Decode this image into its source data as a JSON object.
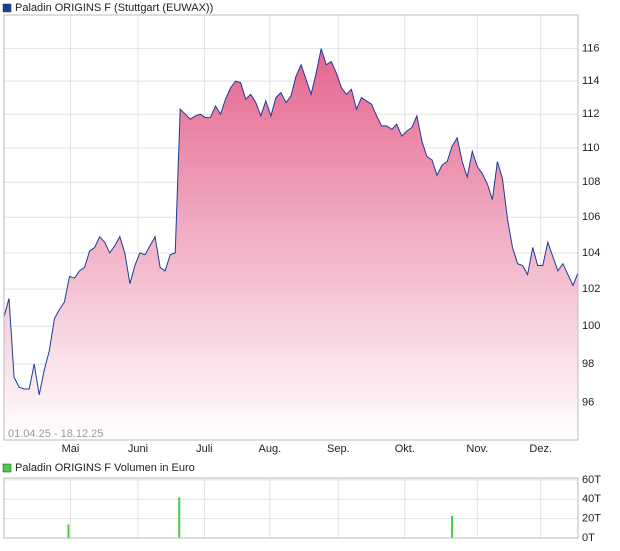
{
  "chart_data": [
    {
      "type": "area",
      "title": "Paladin ORIGINS F (Stuttgart (EUWAX))",
      "annotation": "01.04.25 - 18.12.25",
      "color": "#1a3c9a",
      "fill_color": "#e5658f",
      "log_scale": true,
      "grid": true,
      "values": [
        100.5,
        101.5,
        97.3,
        96.8,
        96.7,
        96.7,
        98,
        96.4,
        97.7,
        98.7,
        100.4,
        100.9,
        101.3,
        102.7,
        102.6,
        103,
        103.2,
        104.1,
        104.3,
        104.9,
        104.6,
        104,
        104.4,
        104.9,
        104,
        102.3,
        103.3,
        104,
        103.9,
        104.4,
        104.9,
        103.2,
        103,
        103.9,
        104,
        112.3,
        112,
        111.7,
        111.9,
        112,
        111.8,
        111.8,
        112.5,
        112,
        112.9,
        113.6,
        114,
        113.9,
        112.9,
        113.2,
        112.7,
        111.9,
        112.8,
        111.9,
        113,
        113.3,
        112.7,
        113.1,
        114.3,
        115,
        114.1,
        113.2,
        114.5,
        116,
        115,
        115.2,
        114.5,
        113.6,
        113.2,
        113.5,
        112.3,
        113,
        112.8,
        112.6,
        111.9,
        111.3,
        111.3,
        111.1,
        111.4,
        110.7,
        111,
        111.2,
        111.9,
        110.4,
        109.5,
        109.3,
        108.4,
        109,
        109.2,
        110.1,
        110.6,
        109.2,
        108.3,
        109.8,
        108.9,
        108.5,
        107.9,
        107,
        109.2,
        108.2,
        105.9,
        104.3,
        103.4,
        103.3,
        102.8,
        104.3,
        103.3,
        103.3,
        104.6,
        103.8,
        103,
        103.4,
        102.8,
        102.2,
        102.9
      ],
      "xlim": [
        0,
        114
      ],
      "xticks": [
        {
          "value": 13.2,
          "label": "Mai"
        },
        {
          "value": 26.6,
          "label": "Juni"
        },
        {
          "value": 39.8,
          "label": "Juli"
        },
        {
          "value": 52.8,
          "label": "Aug."
        },
        {
          "value": 66.4,
          "label": "Sep."
        },
        {
          "value": 79.6,
          "label": "Okt."
        },
        {
          "value": 94,
          "label": "Nov."
        },
        {
          "value": 106.6,
          "label": "Dez."
        }
      ],
      "ylim": [
        94.1,
        118.1
      ],
      "yticks": [
        96,
        98,
        100,
        102,
        104,
        106,
        108,
        110,
        112,
        114,
        116
      ]
    },
    {
      "type": "bar",
      "title": "Paladin ORIGINS F Volumen in Euro",
      "color": "#44cc44",
      "grid": true,
      "x": [
        12.8,
        34.8,
        89
      ],
      "values": [
        14000,
        42000,
        23000
      ],
      "xlim": [
        0,
        114
      ],
      "ylim": [
        0,
        62000
      ],
      "yticks": [
        {
          "value": 0,
          "label": "0T"
        },
        {
          "value": 20000,
          "label": "20T"
        },
        {
          "value": 40000,
          "label": "40T"
        },
        {
          "value": 60000,
          "label": "60T"
        }
      ]
    }
  ]
}
